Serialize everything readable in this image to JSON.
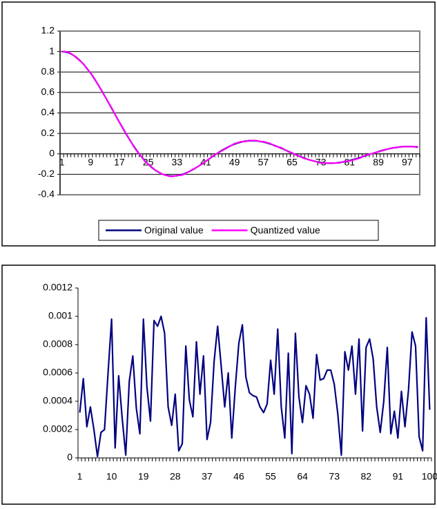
{
  "chart_data": [
    {
      "type": "line",
      "categories": [
        1,
        null,
        null,
        null,
        null,
        null,
        null,
        null,
        9,
        null,
        null,
        null,
        null,
        null,
        null,
        null,
        17,
        null,
        null,
        null,
        null,
        null,
        null,
        null,
        25,
        null,
        null,
        null,
        null,
        null,
        null,
        null,
        33,
        null,
        null,
        null,
        null,
        null,
        null,
        null,
        41,
        null,
        null,
        null,
        null,
        null,
        null,
        null,
        49,
        null,
        null,
        null,
        null,
        null,
        null,
        null,
        57,
        null,
        null,
        null,
        null,
        null,
        null,
        null,
        65,
        null,
        null,
        null,
        null,
        null,
        null,
        null,
        73,
        null,
        null,
        null,
        null,
        null,
        null,
        null,
        81,
        null,
        null,
        null,
        null,
        null,
        null,
        null,
        89,
        null,
        null,
        null,
        null,
        null,
        null,
        null,
        97,
        null,
        null,
        null
      ],
      "series": [
        {
          "name": "Original value",
          "color": "#000080",
          "values": [
            1,
            0.996,
            0.986,
            0.968,
            0.944,
            0.913,
            0.877,
            0.834,
            0.788,
            0.736,
            0.68,
            0.622,
            0.561,
            0.498,
            0.435,
            0.371,
            0.308,
            0.246,
            0.186,
            0.129,
            0.074,
            0.024,
            -0.023,
            -0.065,
            -0.102,
            -0.134,
            -0.161,
            -0.182,
            -0.199,
            -0.21,
            -0.216,
            -0.217,
            -0.214,
            -0.206,
            -0.195,
            -0.18,
            -0.162,
            -0.142,
            -0.12,
            -0.097,
            -0.073,
            -0.048,
            -0.024,
            0,
            0.023,
            0.044,
            0.063,
            0.08,
            0.095,
            0.107,
            0.117,
            0.124,
            0.127,
            0.128,
            0.127,
            0.122,
            0.116,
            0.107,
            0.096,
            0.083,
            0.07,
            0.055,
            0.04,
            0.024,
            0.008,
            -0.008,
            -0.023,
            -0.036,
            -0.049,
            -0.061,
            -0.07,
            -0.078,
            -0.085,
            -0.089,
            -0.091,
            -0.091,
            -0.09,
            -0.086,
            -0.081,
            -0.074,
            -0.066,
            -0.056,
            -0.046,
            -0.035,
            -0.023,
            -0.012,
            0,
            0.011,
            0.022,
            0.033,
            0.042,
            0.05,
            0.057,
            0.063,
            0.067,
            0.07,
            0.071,
            0.071,
            0.069,
            0.065
          ]
        },
        {
          "name": "Quantized value",
          "color": "#ff00ff",
          "values": [
            1,
            1,
            0.99,
            0.97,
            0.94,
            0.91,
            0.88,
            0.83,
            0.79,
            0.74,
            0.68,
            0.62,
            0.56,
            0.5,
            0.44,
            0.37,
            0.31,
            0.25,
            0.19,
            0.13,
            0.07,
            0.02,
            -0.02,
            -0.07,
            -0.1,
            -0.13,
            -0.16,
            -0.18,
            -0.2,
            -0.21,
            -0.22,
            -0.22,
            -0.21,
            -0.21,
            -0.2,
            -0.18,
            -0.16,
            -0.14,
            -0.12,
            -0.1,
            -0.07,
            -0.05,
            -0.02,
            0,
            0.02,
            0.04,
            0.06,
            0.08,
            0.1,
            0.11,
            0.12,
            0.12,
            0.13,
            0.13,
            0.13,
            0.12,
            0.12,
            0.11,
            0.1,
            0.08,
            0.07,
            0.06,
            0.04,
            0.02,
            0.01,
            -0.01,
            -0.02,
            -0.04,
            -0.05,
            -0.06,
            -0.07,
            -0.08,
            -0.09,
            -0.09,
            -0.09,
            -0.09,
            -0.09,
            -0.09,
            -0.08,
            -0.07,
            -0.07,
            -0.06,
            -0.05,
            -0.04,
            -0.02,
            -0.01,
            0,
            0.01,
            0.02,
            0.03,
            0.04,
            0.05,
            0.06,
            0.06,
            0.07,
            0.07,
            0.07,
            0.07,
            0.07,
            0.07
          ]
        }
      ],
      "ylim": [
        -0.4,
        1.2
      ],
      "yticks": [
        -0.4,
        -0.2,
        0,
        0.2,
        0.4,
        0.6,
        0.8,
        1,
        1.2
      ],
      "grid": true,
      "legend": "bottom"
    },
    {
      "type": "line",
      "categories": [
        1,
        null,
        null,
        null,
        null,
        null,
        null,
        null,
        null,
        10,
        null,
        null,
        null,
        null,
        null,
        null,
        null,
        null,
        19,
        null,
        null,
        null,
        null,
        null,
        null,
        null,
        null,
        28,
        null,
        null,
        null,
        null,
        null,
        null,
        null,
        null,
        37,
        null,
        null,
        null,
        null,
        null,
        null,
        null,
        null,
        46,
        null,
        null,
        null,
        null,
        null,
        null,
        null,
        null,
        55,
        null,
        null,
        null,
        null,
        null,
        null,
        null,
        null,
        64,
        null,
        null,
        null,
        null,
        null,
        null,
        null,
        null,
        73,
        null,
        null,
        null,
        null,
        null,
        null,
        null,
        null,
        82,
        null,
        null,
        null,
        null,
        null,
        null,
        null,
        null,
        91,
        null,
        null,
        null,
        null,
        null,
        null,
        null,
        null,
        100
      ],
      "series": [
        {
          "color": "#000080",
          "values": [
            0.00032,
            0.00056,
            0.00022,
            0.00036,
            0.0002,
            1e-05,
            0.00018,
            0.0002,
            0.0006,
            0.00098,
            7e-05,
            0.00058,
            0.00028,
            2e-05,
            0.00054,
            0.00072,
            0.00035,
            0.00017,
            0.00098,
            0.0005,
            0.00026,
            0.00097,
            0.00093,
            0.001,
            0.00088,
            0.00036,
            0.00023,
            0.00045,
            5e-05,
            0.0001,
            0.00079,
            0.00041,
            0.00029,
            0.00082,
            0.00045,
            0.00072,
            0.00013,
            0.00025,
            0.00068,
            0.00093,
            0.00065,
            0.00036,
            0.0006,
            0.00014,
            0.0005,
            0.00081,
            0.00094,
            0.00057,
            0.00046,
            0.00044,
            0.00043,
            0.00036,
            0.00032,
            0.00038,
            0.00069,
            0.00045,
            0.00091,
            0.00036,
            0.00014,
            0.00074,
            3e-05,
            0.00088,
            0.00043,
            0.00025,
            0.00051,
            0.00045,
            0.00028,
            0.00073,
            0.00055,
            0.00056,
            0.00062,
            0.00062,
            0.00052,
            0.00031,
            2e-05,
            0.00075,
            0.00062,
            0.00079,
            0.00045,
            0.00084,
            0.00019,
            0.00078,
            0.00084,
            0.0007,
            0.00036,
            0.00018,
            0.0004,
            0.00078,
            0.00017,
            0.00033,
            0.00014,
            0.00047,
            0.00022,
            0.00048,
            0.00089,
            0.00079,
            0.00015,
            5e-05,
            0.00099,
            0.00034
          ]
        }
      ],
      "ylim": [
        0,
        0.0012
      ],
      "yticks": [
        0,
        0.0002,
        0.0004,
        0.0006,
        0.0008,
        0.001,
        0.0012
      ],
      "grid": false
    }
  ]
}
